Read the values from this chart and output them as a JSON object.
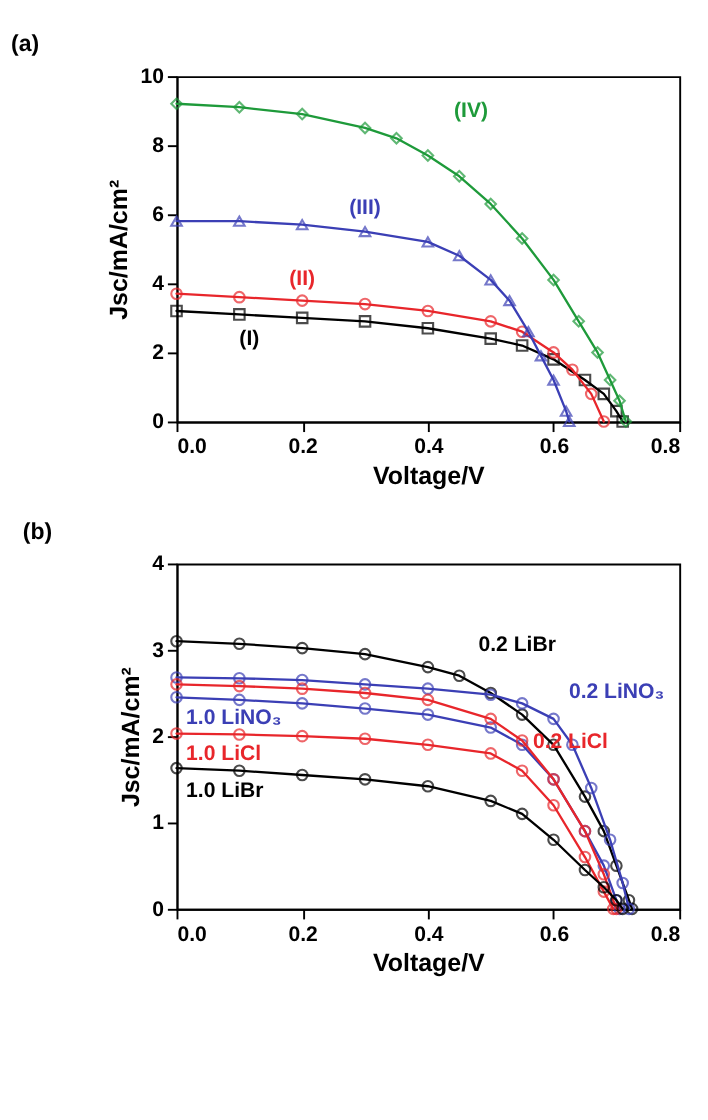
{
  "chart_data": [
    {
      "type": "line",
      "title": "(a)",
      "xlabel": "Voltage/V",
      "ylabel": "Jsc/mA/cm²",
      "grid": false,
      "legend": false,
      "line_style": "solid",
      "xlim": [
        0,
        0.8
      ],
      "xticks": [
        {
          "value": 0,
          "label": "0.0"
        },
        {
          "value": 0.2,
          "label": "0.2"
        },
        {
          "value": 0.4,
          "label": "0.4"
        },
        {
          "value": 0.6,
          "label": "0.6"
        },
        {
          "value": 0.8,
          "label": "0.8"
        }
      ],
      "ylim": [
        0,
        10
      ],
      "yticks": [
        0,
        2,
        4,
        6,
        8,
        10
      ],
      "series": [
        {
          "name": "(I)",
          "color": "#000000",
          "marker": "square",
          "x": [
            0,
            0.1,
            0.2,
            0.3,
            0.4,
            0.5,
            0.55,
            0.6,
            0.65,
            0.68,
            0.7,
            0.71
          ],
          "values": [
            3.2,
            3.1,
            3.0,
            2.9,
            2.7,
            2.4,
            2.2,
            1.8,
            1.2,
            0.8,
            0.3,
            0
          ]
        },
        {
          "name": "(II)",
          "color": "#e8262b",
          "marker": "circle",
          "x": [
            0,
            0.1,
            0.2,
            0.3,
            0.4,
            0.5,
            0.55,
            0.6,
            0.63,
            0.66,
            0.68
          ],
          "values": [
            3.7,
            3.6,
            3.5,
            3.4,
            3.2,
            2.9,
            2.6,
            2.0,
            1.5,
            0.8,
            0
          ]
        },
        {
          "name": "(III)",
          "color": "#3b3fb5",
          "marker": "triangle",
          "x": [
            0,
            0.1,
            0.2,
            0.3,
            0.4,
            0.45,
            0.5,
            0.53,
            0.56,
            0.58,
            0.6,
            0.62,
            0.625
          ],
          "values": [
            5.8,
            5.8,
            5.7,
            5.5,
            5.2,
            4.8,
            4.1,
            3.5,
            2.6,
            1.9,
            1.2,
            0.3,
            0
          ]
        },
        {
          "name": "(IV)",
          "color": "#1e9a3a",
          "marker": "diamond",
          "x": [
            0,
            0.1,
            0.2,
            0.3,
            0.35,
            0.4,
            0.45,
            0.5,
            0.55,
            0.6,
            0.64,
            0.67,
            0.69,
            0.705,
            0.715
          ],
          "values": [
            9.2,
            9.1,
            8.9,
            8.5,
            8.2,
            7.7,
            7.1,
            6.3,
            5.3,
            4.1,
            2.9,
            2.0,
            1.2,
            0.6,
            0
          ]
        }
      ]
    },
    {
      "type": "line",
      "title": "(b)",
      "xlabel": "Voltage/V",
      "ylabel": "Jsc/mA/cm²",
      "grid": false,
      "legend": false,
      "marker": "circle",
      "line_style": "solid",
      "xlim": [
        0,
        0.8
      ],
      "xticks": [
        {
          "value": 0,
          "label": "0.0"
        },
        {
          "value": 0.2,
          "label": "0.2"
        },
        {
          "value": 0.4,
          "label": "0.4"
        },
        {
          "value": 0.6,
          "label": "0.6"
        },
        {
          "value": 0.8,
          "label": "0.8"
        }
      ],
      "ylim": [
        0,
        4
      ],
      "yticks": [
        0,
        1,
        2,
        3,
        4
      ],
      "series": [
        {
          "name": "0.2 LiBr",
          "color": "#000000",
          "x": [
            0,
            0.1,
            0.2,
            0.3,
            0.4,
            0.45,
            0.5,
            0.55,
            0.6,
            0.65,
            0.68,
            0.7,
            0.72,
            0.725
          ],
          "values": [
            3.1,
            3.07,
            3.02,
            2.95,
            2.8,
            2.7,
            2.5,
            2.25,
            1.9,
            1.3,
            0.9,
            0.5,
            0.1,
            0
          ]
        },
        {
          "name": "0.2 LiNO₃",
          "color": "#3b3fb5",
          "x": [
            0,
            0.1,
            0.2,
            0.3,
            0.4,
            0.5,
            0.55,
            0.6,
            0.63,
            0.66,
            0.69,
            0.71,
            0.72
          ],
          "values": [
            2.68,
            2.67,
            2.65,
            2.6,
            2.55,
            2.48,
            2.38,
            2.2,
            1.9,
            1.4,
            0.8,
            0.3,
            0
          ]
        },
        {
          "name": "1.0 LiNO₃",
          "color": "#3b3fb5",
          "x": [
            0,
            0.1,
            0.2,
            0.3,
            0.4,
            0.5,
            0.55,
            0.6,
            0.65,
            0.68,
            0.7,
            0.705
          ],
          "values": [
            2.45,
            2.42,
            2.38,
            2.32,
            2.25,
            2.1,
            1.9,
            1.5,
            0.9,
            0.5,
            0.1,
            0
          ]
        },
        {
          "name": "0.2 LiCl",
          "color": "#e8262b",
          "x": [
            0,
            0.1,
            0.2,
            0.3,
            0.4,
            0.5,
            0.55,
            0.6,
            0.65,
            0.68,
            0.7
          ],
          "values": [
            2.6,
            2.58,
            2.55,
            2.5,
            2.42,
            2.2,
            1.95,
            1.5,
            0.9,
            0.4,
            0
          ]
        },
        {
          "name": "1.0 LiCl",
          "color": "#e8262b",
          "x": [
            0,
            0.1,
            0.2,
            0.3,
            0.4,
            0.5,
            0.55,
            0.6,
            0.65,
            0.68,
            0.695
          ],
          "values": [
            2.03,
            2.02,
            2.0,
            1.97,
            1.9,
            1.8,
            1.6,
            1.2,
            0.6,
            0.2,
            0
          ]
        },
        {
          "name": "1.0 LiBr",
          "color": "#000000",
          "x": [
            0,
            0.1,
            0.2,
            0.3,
            0.4,
            0.5,
            0.55,
            0.6,
            0.65,
            0.68,
            0.7,
            0.71
          ],
          "values": [
            1.63,
            1.6,
            1.55,
            1.5,
            1.42,
            1.25,
            1.1,
            0.8,
            0.45,
            0.25,
            0.1,
            0
          ]
        }
      ]
    }
  ]
}
